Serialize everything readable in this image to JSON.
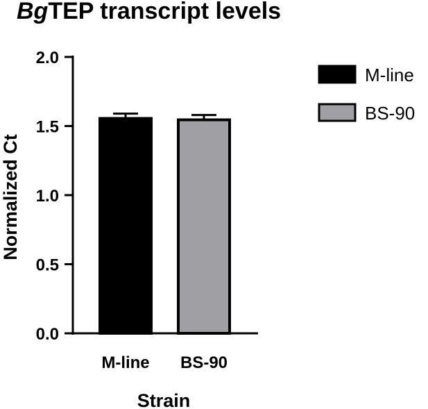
{
  "chart_data": {
    "type": "bar",
    "title_italic": "Bg",
    "title_rest": "TEP transcript levels",
    "xlabel": "Strain",
    "ylabel": "Normalized Ct",
    "categories": [
      "M-line",
      "BS-90"
    ],
    "values": [
      1.555,
      1.545
    ],
    "errors": [
      0.035,
      0.035
    ],
    "colors": [
      "#000000",
      "#a0a0a4"
    ],
    "ylim": [
      0,
      2.0
    ],
    "yticks": [
      "0.0",
      "0.5",
      "1.0",
      "1.5",
      "2.0"
    ],
    "legend": {
      "placement": "right",
      "entries": [
        "M-line",
        "BS-90"
      ]
    },
    "grid": false
  }
}
